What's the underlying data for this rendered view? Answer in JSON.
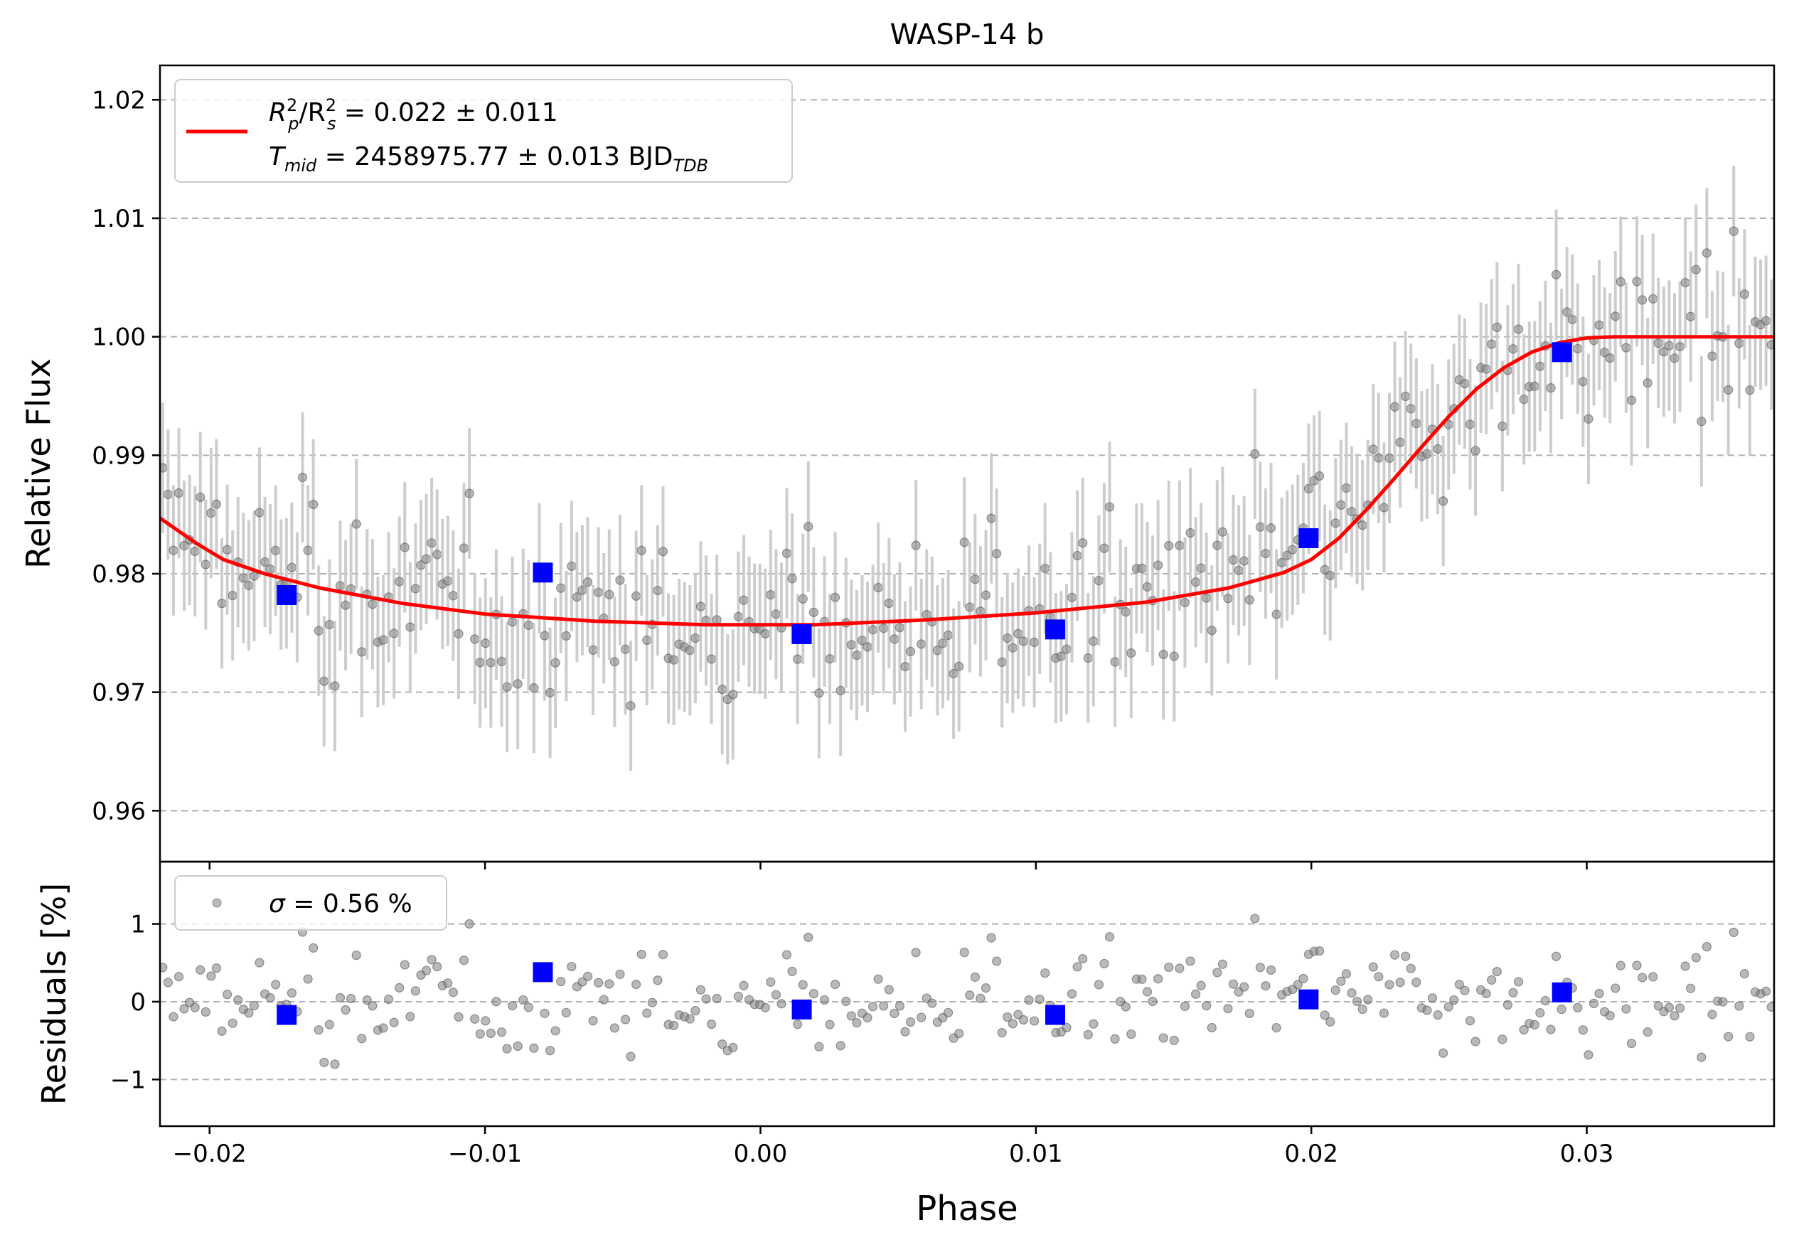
{
  "colors": {
    "model": "#ff0000",
    "binned": "#0000ff",
    "raw_point": "#808080",
    "raw_errorbar": "#c8c8c8",
    "grid": "#b0b0b0",
    "axes": "#000000"
  },
  "chart_data": {
    "type": "scatter",
    "title": "WASP-14 b",
    "xlabel": "Phase",
    "xlim": [
      -0.0218,
      0.0368
    ],
    "x_ticks": [
      -0.02,
      -0.01,
      0.0,
      0.01,
      0.02,
      0.03
    ],
    "x_tick_labels": [
      "−0.02",
      "−0.01",
      "0.00",
      "0.01",
      "0.02",
      "0.03"
    ],
    "panels": [
      {
        "name": "flux",
        "ylabel": "Relative Flux",
        "ylim": [
          0.9557,
          1.0229
        ],
        "y_ticks": [
          0.96,
          0.97,
          0.98,
          0.99,
          1.0,
          1.01,
          1.02
        ],
        "y_tick_labels": [
          "0.96",
          "0.97",
          "0.98",
          "0.99",
          "1.00",
          "1.01",
          "1.02"
        ],
        "grid": "horizontal dashed",
        "legend": {
          "placement": "upper-left",
          "entries": [
            {
              "marker": "line",
              "line1_prefix": "R",
              "line1_mid": "/R",
              "line1_suffix": " = 0.022 ± 0.011",
              "line2_prefix": "T",
              "line2_sub": "mid",
              "line2_mid": " = 2458975.77 ± 0.013 BJD",
              "line2_sub2": "TDB"
            }
          ]
        },
        "series": [
          {
            "kind": "model",
            "points": [
              [
                -0.0218,
                0.9847
              ],
              [
                -0.0205,
                0.9826
              ],
              [
                -0.0195,
                0.9812
              ],
              [
                -0.018,
                0.98
              ],
              [
                -0.016,
                0.9788
              ],
              [
                -0.013,
                0.9775
              ],
              [
                -0.01,
                0.9766
              ],
              [
                -0.006,
                0.976
              ],
              [
                -0.002,
                0.9757
              ],
              [
                0.002,
                0.9757
              ],
              [
                0.006,
                0.9761
              ],
              [
                0.01,
                0.9767
              ],
              [
                0.014,
                0.9776
              ],
              [
                0.017,
                0.9788
              ],
              [
                0.019,
                0.9801
              ],
              [
                0.02,
                0.9812
              ],
              [
                0.021,
                0.983
              ],
              [
                0.022,
                0.9854
              ],
              [
                0.023,
                0.988
              ],
              [
                0.024,
                0.9907
              ],
              [
                0.025,
                0.9933
              ],
              [
                0.026,
                0.9956
              ],
              [
                0.027,
                0.9974
              ],
              [
                0.028,
                0.9987
              ],
              [
                0.029,
                0.9995
              ],
              [
                0.03,
                0.9999
              ],
              [
                0.031,
                1.0
              ],
              [
                0.0368,
                1.0
              ]
            ]
          },
          {
            "kind": "binned",
            "points": [
              [
                -0.0172,
                0.9782
              ],
              [
                -0.0079,
                0.9801
              ],
              [
                0.0015,
                0.9749
              ],
              [
                0.0107,
                0.9753
              ],
              [
                0.0199,
                0.983
              ],
              [
                0.0291,
                0.9987
              ]
            ]
          },
          {
            "kind": "raw",
            "note": "dense unbinned measurements with grey error bars",
            "count": 300,
            "errorbar": 0.0055
          }
        ]
      },
      {
        "name": "residuals",
        "ylabel": "Residuals [%]",
        "ylim": [
          -1.6,
          1.8
        ],
        "y_ticks": [
          -1,
          0,
          1
        ],
        "y_tick_labels": [
          "−1",
          "0",
          "1"
        ],
        "grid": "horizontal dashed",
        "legend": {
          "placement": "upper-left",
          "entries": [
            {
              "marker": "point",
              "prefix": "σ",
              "suffix": " = 0.56 %"
            }
          ]
        },
        "series": [
          {
            "kind": "binned",
            "points": [
              [
                -0.0172,
                -0.17
              ],
              [
                -0.0079,
                0.38
              ],
              [
                0.0015,
                -0.1
              ],
              [
                0.0107,
                -0.17
              ],
              [
                0.0199,
                0.03
              ],
              [
                0.0291,
                0.12
              ]
            ]
          },
          {
            "kind": "raw",
            "note": "residual scatter of unbinned points",
            "count": 300,
            "sigma": 0.56
          }
        ]
      }
    ]
  }
}
